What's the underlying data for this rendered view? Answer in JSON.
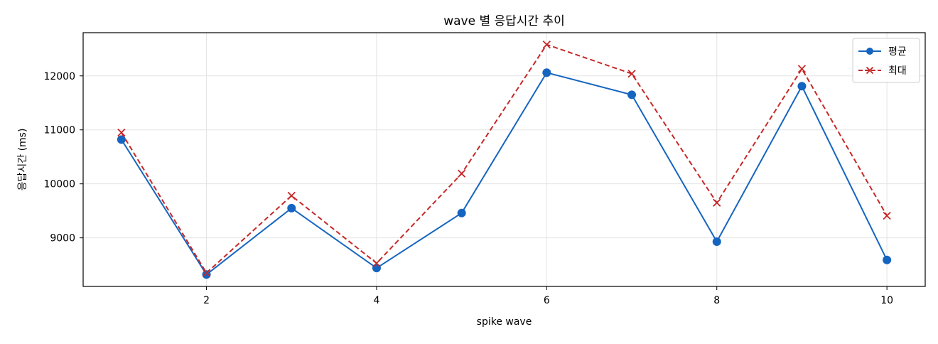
{
  "chart_data": {
    "type": "line",
    "title": "wave 별 응답시간 추이",
    "xlabel": "spike wave",
    "ylabel": "응답시간 (ms)",
    "x": [
      1,
      2,
      3,
      4,
      5,
      6,
      7,
      8,
      9,
      10
    ],
    "xlim": [
      0.55,
      10.45
    ],
    "ylim": [
      8100,
      12800
    ],
    "xticks": [
      2,
      4,
      6,
      8,
      10
    ],
    "yticks": [
      9000,
      10000,
      11000,
      12000
    ],
    "grid": true,
    "legend_position": "top-right",
    "series": [
      {
        "name": "평균",
        "values": [
          10820,
          8320,
          9550,
          8440,
          9460,
          12060,
          11650,
          8930,
          11810,
          8590
        ],
        "color": "#1565c0",
        "line_style": "solid",
        "marker": "circle"
      },
      {
        "name": "최대",
        "values": [
          10950,
          8350,
          9780,
          8530,
          10190,
          12580,
          12040,
          9650,
          12130,
          9410
        ],
        "color": "#c62828",
        "line_style": "dashed",
        "marker": "x"
      }
    ]
  }
}
